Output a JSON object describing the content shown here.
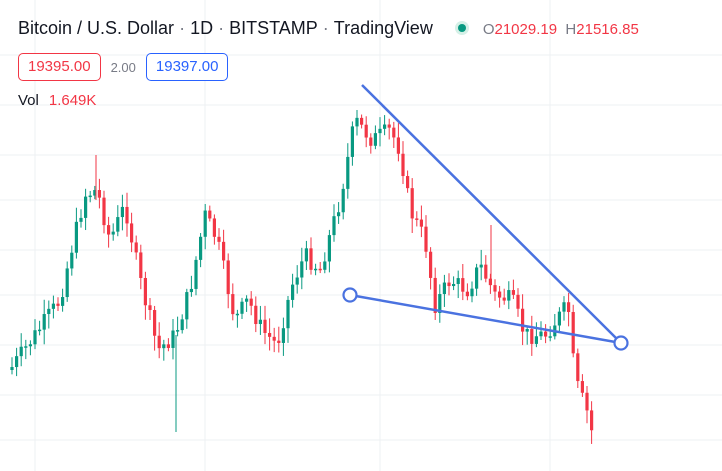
{
  "header": {
    "symbol": "Bitcoin / U.S. Dollar",
    "interval": "1D",
    "exchange": "BITSTAMP",
    "source": "TradingView",
    "market_status_color": "#089981",
    "open_label": "O",
    "open_value": "21029.19",
    "high_label": "H",
    "high_value": "21516.85"
  },
  "prices": {
    "bid": "19395.00",
    "spread": "2.00",
    "ask": "19397.00"
  },
  "volume": {
    "label": "Vol",
    "value": "1.649K"
  },
  "colors": {
    "up": "#089981",
    "down": "#f23645",
    "drawing": "#4a72e0",
    "grid": "#eef0f3"
  },
  "drawings": [
    {
      "type": "trend-line",
      "name": "upper-trendline"
    },
    {
      "type": "trend-line",
      "name": "lower-trendline"
    }
  ]
}
